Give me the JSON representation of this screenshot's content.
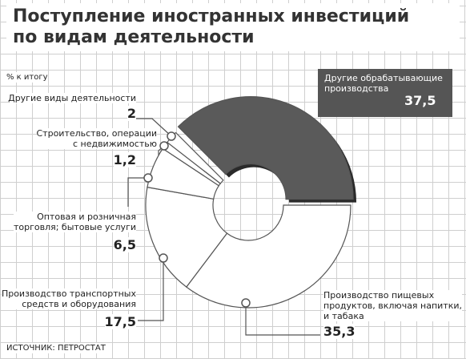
{
  "title": "Поступление иностранных инвестиций\nпо видам деятельности",
  "subtitle": "% к итогу",
  "source": "ИСТОЧНИК: ПЕТРОСТАТ",
  "chart_data": {
    "type": "donut",
    "categories": [
      "Другие обрабатывающие\nпроизводства",
      "Производство пищевых\nпродуктов, включая напитки,\nи табака",
      "Производство транспортных\nсредств и оборудования",
      "Оптовая и розничная\nторговля; бытовые услуги",
      "Строительство, операции\nс недвижимостью",
      "Другие виды деятельности"
    ],
    "values": [
      37.5,
      35.3,
      17.5,
      6.5,
      1.2,
      2
    ],
    "value_labels": [
      "37,5",
      "35,3",
      "17,5",
      "6,5",
      "1,2",
      "2"
    ],
    "colors": [
      "#5a5a5a",
      "#ffffff",
      "#ffffff",
      "#ffffff",
      "#ffffff",
      "#ffffff"
    ]
  }
}
